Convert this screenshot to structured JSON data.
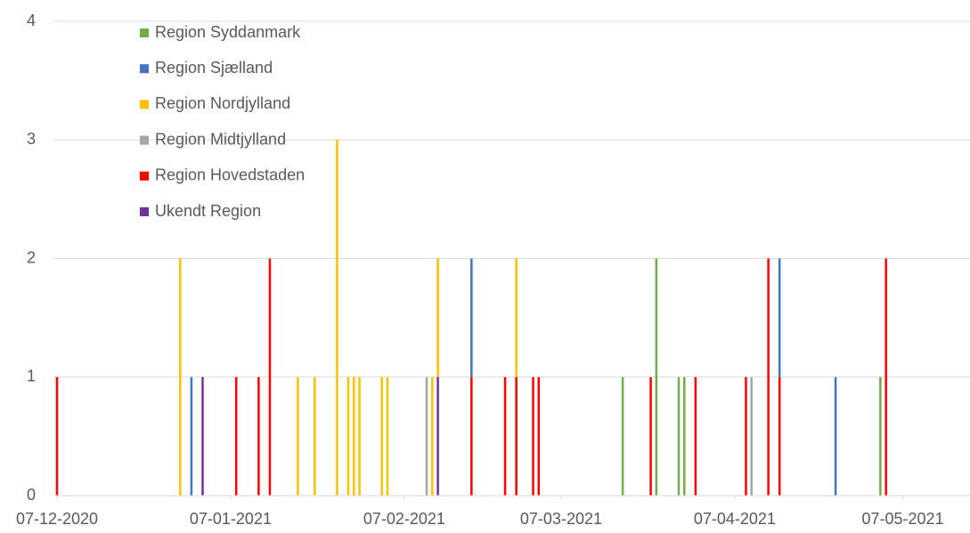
{
  "chart_data": {
    "type": "stacked-bar",
    "x": [
      "07-12-2020",
      "29-12-2020",
      "31-12-2020",
      "02-01-2021",
      "08-01-2021",
      "12-01-2021",
      "14-01-2021",
      "19-01-2021",
      "22-01-2021",
      "26-01-2021",
      "28-01-2021",
      "29-01-2021",
      "30-01-2021",
      "03-02-2021",
      "04-02-2021",
      "11-02-2021",
      "12-02-2021",
      "13-02-2021",
      "19-02-2021",
      "25-02-2021",
      "27-02-2021",
      "02-03-2021",
      "03-03-2021",
      "18-03-2021",
      "23-03-2021",
      "24-03-2021",
      "28-03-2021",
      "29-03-2021",
      "31-03-2021",
      "09-04-2021",
      "10-04-2021",
      "13-04-2021",
      "15-04-2021",
      "25-04-2021",
      "03-05-2021",
      "04-05-2021"
    ],
    "series": [
      {
        "name": "Region Syddanmark",
        "color": "#70ad47",
        "values": [
          0,
          0,
          0,
          0,
          0,
          0,
          0,
          0,
          0,
          0,
          0,
          0,
          0,
          0,
          0,
          0,
          0,
          0,
          0,
          0,
          0,
          0,
          0,
          1,
          0,
          2,
          1,
          1,
          0,
          0,
          0,
          0,
          0,
          0,
          1,
          0
        ]
      },
      {
        "name": "Region Sjælland",
        "color": "#4472c4",
        "values": [
          0,
          0,
          1,
          0,
          0,
          0,
          0,
          0,
          0,
          0,
          0,
          0,
          0,
          0,
          0,
          0,
          0,
          0,
          1,
          0,
          0,
          0,
          0,
          0,
          0,
          0,
          0,
          0,
          0,
          0,
          0,
          0,
          1,
          1,
          0,
          0
        ]
      },
      {
        "name": "Region Nordjylland",
        "color": "#ffc000",
        "values": [
          0,
          2,
          0,
          0,
          0,
          0,
          0,
          1,
          1,
          3,
          1,
          1,
          1,
          1,
          1,
          0,
          1,
          1,
          0,
          0,
          1,
          0,
          0,
          0,
          0,
          0,
          0,
          0,
          0,
          0,
          0,
          0,
          0,
          0,
          0,
          0
        ]
      },
      {
        "name": "Region Midtjylland",
        "color": "#a5a5a5",
        "values": [
          0,
          0,
          0,
          0,
          0,
          0,
          0,
          0,
          0,
          0,
          0,
          0,
          0,
          0,
          0,
          1,
          0,
          0,
          0,
          0,
          0,
          0,
          0,
          0,
          0,
          0,
          0,
          0,
          0,
          0,
          1,
          0,
          0,
          0,
          0,
          0
        ]
      },
      {
        "name": "Region Hovedstaden",
        "color": "#ff0000",
        "values": [
          1,
          0,
          0,
          0,
          1,
          1,
          2,
          0,
          0,
          0,
          0,
          0,
          0,
          0,
          0,
          0,
          0,
          0,
          1,
          1,
          1,
          1,
          1,
          0,
          1,
          0,
          0,
          0,
          1,
          1,
          0,
          2,
          1,
          0,
          0,
          2
        ]
      },
      {
        "name": "Ukendt Region",
        "color": "#7030a0",
        "values": [
          0,
          0,
          0,
          1,
          0,
          0,
          0,
          0,
          0,
          0,
          0,
          0,
          0,
          0,
          0,
          0,
          0,
          1,
          0,
          0,
          0,
          0,
          0,
          0,
          0,
          0,
          0,
          0,
          0,
          0,
          0,
          0,
          0,
          0,
          0,
          0
        ]
      }
    ],
    "xlim": [
      "07-12-2020",
      "19-05-2021"
    ],
    "xticks": [
      "07-12-2020",
      "07-01-2021",
      "07-02-2021",
      "07-03-2021",
      "07-04-2021",
      "07-05-2021"
    ],
    "ylim": [
      0,
      4
    ],
    "yticks": [
      0,
      1,
      2,
      3,
      4
    ],
    "grid": true,
    "legend": "top-left"
  }
}
